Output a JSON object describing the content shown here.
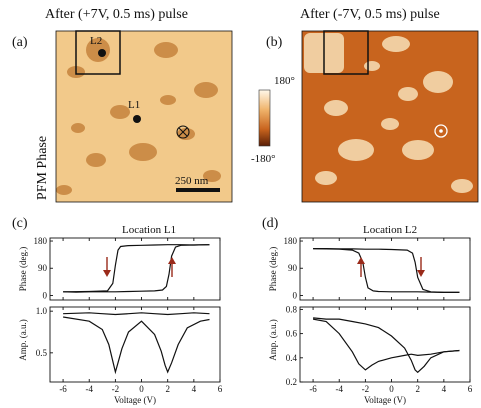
{
  "panels": {
    "a": {
      "letter": "(a)",
      "title": "After (+7V, 0.5 ms) pulse",
      "map_base": "#f2c98a",
      "map_spot": "#c07a32"
    },
    "b": {
      "letter": "(b)",
      "title": "After (-7V, 0.5 ms) pulse",
      "map_base": "#c8641e",
      "map_spot": "#f6dcb2"
    },
    "c": {
      "letter": "(c)",
      "title": "Location L1"
    },
    "d": {
      "letter": "(d)",
      "title": "Location L2"
    }
  },
  "side_label": "PFM Phase",
  "labels": {
    "L1": "L1",
    "L2": "L2"
  },
  "scalebar": "250 nm",
  "colorbar": {
    "top": "180°",
    "bottom": "-180°",
    "colors": [
      "#fff8ea",
      "#f0b46c",
      "#c8641e",
      "#5a1e06"
    ]
  },
  "y_labels": {
    "phase": "Phase (deg.)",
    "amp": "Amp. (a.u.)"
  },
  "x_label": "Voltage (V)",
  "chart_data": [
    {
      "type": "line",
      "title": "Location L1",
      "xlabel": "Voltage (V)",
      "ylabel": "Phase (deg.)",
      "xlim": [
        -7,
        6
      ],
      "ylim": [
        -15,
        190
      ],
      "xticks": [
        "-6",
        "-4",
        "-2",
        "0",
        "2",
        "4",
        "6"
      ],
      "yticks": [
        "0",
        "90",
        "180"
      ],
      "series": [
        {
          "x": [
            -6,
            -4,
            -2.6,
            -2.2,
            -2.0,
            -1.8,
            -1.6,
            -1,
            0,
            1,
            2,
            3,
            4,
            5.2
          ],
          "y": [
            12,
            13,
            15,
            40,
            100,
            150,
            162,
            165,
            166,
            167,
            168,
            168,
            167,
            168
          ]
        },
        {
          "x": [
            5.2,
            4,
            3,
            2.6,
            2.3,
            2.1,
            1.9,
            1.6,
            1,
            0,
            -1,
            -2,
            -3,
            -4,
            -5,
            -6
          ],
          "y": [
            168,
            167,
            166,
            160,
            130,
            70,
            30,
            18,
            15,
            14,
            13,
            12,
            12,
            12,
            11,
            12
          ]
        }
      ]
    },
    {
      "type": "line",
      "xlabel": "Voltage (V)",
      "ylabel": "Amp. (a.u.)",
      "xlim": [
        -7,
        6
      ],
      "ylim": [
        0.15,
        1.05
      ],
      "xticks": [
        "-6",
        "-4",
        "-2",
        "0",
        "2",
        "4",
        "6"
      ],
      "yticks": [
        "0.5",
        "1.0"
      ],
      "series": [
        {
          "x": [
            -6,
            -4,
            -3,
            -2.5,
            -2.2,
            -2.0,
            -1.8,
            -1.5,
            -1,
            0,
            1,
            1.5,
            1.8,
            2.0,
            2.3,
            2.8,
            3.5,
            4.5,
            5.2
          ],
          "y": [
            0.93,
            0.88,
            0.78,
            0.6,
            0.4,
            0.27,
            0.38,
            0.55,
            0.75,
            0.88,
            0.72,
            0.52,
            0.35,
            0.27,
            0.38,
            0.6,
            0.8,
            0.88,
            0.9
          ]
        },
        {
          "x": [
            -6,
            -4,
            -3,
            -2,
            -1,
            0,
            1,
            2,
            3,
            4,
            5.2
          ],
          "y": [
            0.97,
            0.98,
            0.97,
            0.96,
            0.97,
            0.98,
            0.97,
            0.96,
            0.97,
            0.98,
            0.97
          ]
        }
      ]
    },
    {
      "type": "line",
      "title": "Location L2",
      "xlabel": "Voltage (V)",
      "ylabel": "Phase (deg.)",
      "xlim": [
        -7,
        6
      ],
      "ylim": [
        -15,
        190
      ],
      "xticks": [
        "-6",
        "-4",
        "-2",
        "0",
        "2",
        "4",
        "6"
      ],
      "yticks": [
        "0",
        "90",
        "180"
      ],
      "series": [
        {
          "x": [
            -6,
            -4,
            -3,
            -2.5,
            -2.2,
            -2.0,
            -1.8,
            -1.4,
            -1,
            0,
            1,
            2,
            3,
            4,
            5.2
          ],
          "y": [
            155,
            153,
            150,
            140,
            110,
            60,
            25,
            15,
            13,
            12,
            12,
            12,
            11,
            10,
            10
          ]
        },
        {
          "x": [
            5.2,
            4,
            3,
            2.4,
            2.0,
            1.8,
            1.6,
            1.2,
            0,
            -1,
            -2,
            -3,
            -4,
            -5,
            -6
          ],
          "y": [
            10,
            10,
            12,
            20,
            60,
            110,
            140,
            150,
            152,
            153,
            153,
            154,
            154,
            155,
            155
          ]
        }
      ]
    },
    {
      "type": "line",
      "xlabel": "Voltage (V)",
      "ylabel": "Amp. (a.u.)",
      "xlim": [
        -7,
        6
      ],
      "ylim": [
        0.2,
        0.82
      ],
      "xticks": [
        "-6",
        "-4",
        "-2",
        "0",
        "2",
        "4",
        "6"
      ],
      "yticks": [
        "0.2",
        "0.4",
        "0.6",
        "0.8"
      ],
      "series": [
        {
          "x": [
            -6,
            -5,
            -4,
            -3,
            -2.5,
            -2.0,
            -1.5,
            -1,
            0,
            1,
            1.5,
            2,
            3,
            4,
            5.2
          ],
          "y": [
            0.72,
            0.7,
            0.6,
            0.45,
            0.35,
            0.3,
            0.34,
            0.37,
            0.4,
            0.42,
            0.43,
            0.42,
            0.43,
            0.45,
            0.46
          ]
        },
        {
          "x": [
            5.2,
            4,
            3,
            2.5,
            2.0,
            1.8,
            1.5,
            1,
            0,
            -1,
            -2,
            -3,
            -4,
            -5,
            -6
          ],
          "y": [
            0.46,
            0.45,
            0.4,
            0.33,
            0.28,
            0.3,
            0.38,
            0.48,
            0.58,
            0.65,
            0.68,
            0.7,
            0.72,
            0.72,
            0.73
          ]
        }
      ]
    }
  ]
}
